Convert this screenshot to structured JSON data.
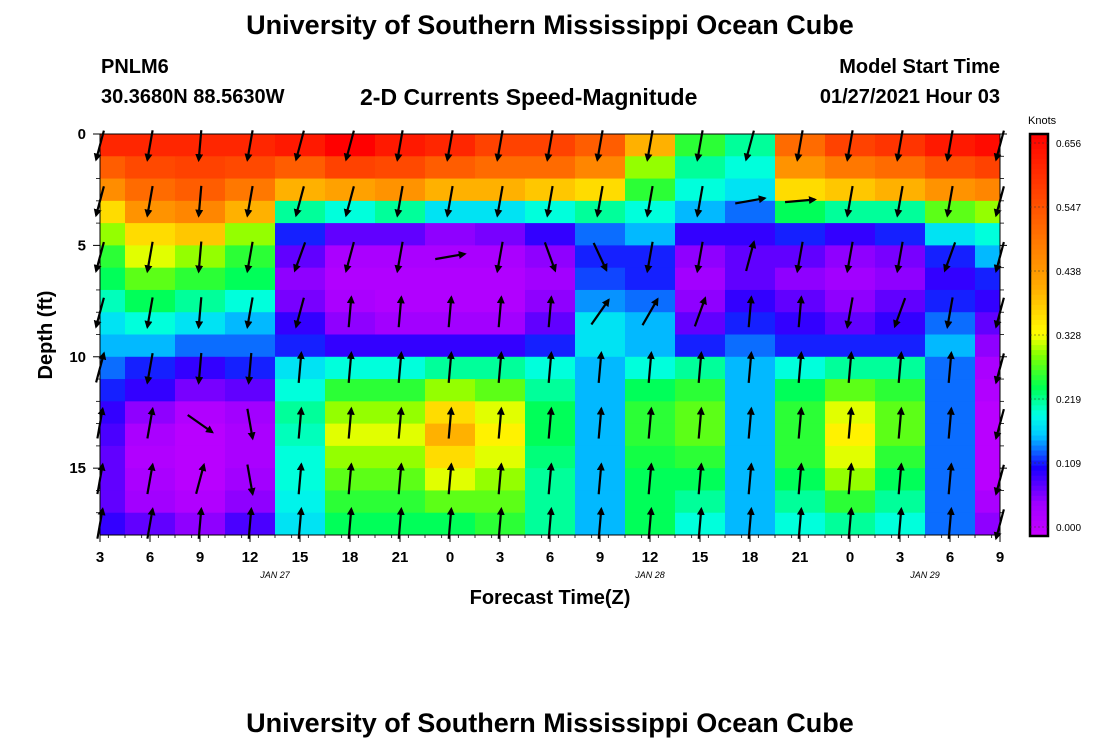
{
  "header": {
    "title": "University of Southern Mississippi Ocean Cube",
    "station_id": "PNLM6",
    "station_coords": "30.3680N 88.5630W",
    "subtitle": "2-D Currents Speed-Magnitude",
    "model_label": "Model Start Time",
    "model_time": "01/27/2021 Hour 03"
  },
  "footer": {
    "title": "University of Southern Mississippi Ocean Cube"
  },
  "chart_data": {
    "type": "heatmap",
    "title": "2-D Currents Speed-Magnitude",
    "xlabel": "Forecast Time(Z)",
    "ylabel": "Depth (ft)",
    "x_tick_labels": [
      "3",
      "6",
      "9",
      "12",
      "15",
      "18",
      "21",
      "0",
      "3",
      "6",
      "9",
      "12",
      "15",
      "18",
      "21",
      "0",
      "3",
      "6",
      "9"
    ],
    "x_date_labels": [
      {
        "label": "JAN 27",
        "at_tick": 3.5
      },
      {
        "label": "JAN 28",
        "at_tick": 11
      },
      {
        "label": "JAN 29",
        "at_tick": 16.5
      }
    ],
    "x_hours_range": [
      3,
      57
    ],
    "y_ticks": [
      0,
      5,
      10,
      15
    ],
    "ylim": [
      0,
      18
    ],
    "y_inverted": true,
    "colorbar": {
      "unit": "Knots",
      "tick_labels": [
        "0.656",
        "0.547",
        "0.438",
        "0.328",
        "0.219",
        "0.109",
        "0.000"
      ],
      "range": [
        0,
        0.656
      ]
    },
    "depth_levels_ft": [
      0.5,
      1.5,
      2.5,
      3.5,
      4.5,
      5.5,
      6.5,
      7.5,
      8.5,
      9.5,
      10.5,
      11.5,
      12.5,
      13.5,
      14.5,
      15.5,
      16.5,
      17.5
    ],
    "time_profiles_hours": [
      3,
      6,
      9,
      12,
      15,
      18,
      21,
      24,
      27,
      30,
      33,
      36,
      39,
      42,
      45,
      48,
      51,
      54,
      57
    ],
    "speed_profiles": [
      [
        0.6,
        0.52,
        0.45,
        0.36,
        0.3,
        0.26,
        0.24,
        0.21,
        0.18,
        0.16,
        0.14,
        0.12,
        0.1,
        0.09,
        0.08,
        0.08,
        0.08,
        0.1
      ],
      [
        0.6,
        0.55,
        0.5,
        0.44,
        0.36,
        0.32,
        0.28,
        0.24,
        0.2,
        0.16,
        0.12,
        0.1,
        0.06,
        0.04,
        0.03,
        0.04,
        0.05,
        0.08
      ],
      [
        0.6,
        0.56,
        0.52,
        0.46,
        0.38,
        0.3,
        0.26,
        0.22,
        0.18,
        0.14,
        0.1,
        0.07,
        0.03,
        0.02,
        0.02,
        0.02,
        0.03,
        0.06
      ],
      [
        0.6,
        0.55,
        0.48,
        0.4,
        0.3,
        0.26,
        0.24,
        0.2,
        0.16,
        0.14,
        0.12,
        0.08,
        0.05,
        0.04,
        0.04,
        0.05,
        0.06,
        0.09
      ],
      [
        0.62,
        0.52,
        0.4,
        0.22,
        0.12,
        0.08,
        0.06,
        0.07,
        0.1,
        0.12,
        0.18,
        0.2,
        0.22,
        0.21,
        0.2,
        0.2,
        0.19,
        0.18
      ],
      [
        0.66,
        0.56,
        0.42,
        0.2,
        0.08,
        0.04,
        0.03,
        0.04,
        0.06,
        0.1,
        0.2,
        0.26,
        0.3,
        0.32,
        0.3,
        0.28,
        0.26,
        0.24
      ],
      [
        0.62,
        0.55,
        0.44,
        0.22,
        0.08,
        0.04,
        0.03,
        0.03,
        0.05,
        0.1,
        0.2,
        0.26,
        0.3,
        0.32,
        0.3,
        0.28,
        0.26,
        0.24
      ],
      [
        0.6,
        0.52,
        0.4,
        0.18,
        0.06,
        0.04,
        0.03,
        0.03,
        0.05,
        0.1,
        0.22,
        0.3,
        0.36,
        0.4,
        0.36,
        0.32,
        0.28,
        0.24
      ],
      [
        0.56,
        0.5,
        0.4,
        0.18,
        0.07,
        0.04,
        0.03,
        0.03,
        0.05,
        0.1,
        0.22,
        0.28,
        0.32,
        0.34,
        0.32,
        0.3,
        0.28,
        0.26
      ],
      [
        0.56,
        0.5,
        0.38,
        0.2,
        0.1,
        0.06,
        0.05,
        0.06,
        0.08,
        0.12,
        0.2,
        0.22,
        0.24,
        0.24,
        0.23,
        0.22,
        0.22,
        0.22
      ],
      [
        0.52,
        0.46,
        0.36,
        0.22,
        0.14,
        0.12,
        0.13,
        0.15,
        0.18,
        0.18,
        0.16,
        0.16,
        0.16,
        0.16,
        0.16,
        0.16,
        0.16,
        0.16
      ],
      [
        0.4,
        0.3,
        0.26,
        0.2,
        0.16,
        0.12,
        0.12,
        0.14,
        0.16,
        0.16,
        0.2,
        0.24,
        0.26,
        0.26,
        0.25,
        0.24,
        0.24,
        0.24
      ],
      [
        0.26,
        0.22,
        0.2,
        0.16,
        0.1,
        0.06,
        0.05,
        0.06,
        0.08,
        0.12,
        0.22,
        0.26,
        0.28,
        0.28,
        0.26,
        0.24,
        0.22,
        0.2
      ],
      [
        0.22,
        0.2,
        0.18,
        0.14,
        0.1,
        0.08,
        0.08,
        0.1,
        0.12,
        0.14,
        0.16,
        0.16,
        0.16,
        0.16,
        0.16,
        0.16,
        0.16,
        0.16
      ],
      [
        0.5,
        0.44,
        0.36,
        0.24,
        0.12,
        0.08,
        0.06,
        0.08,
        0.1,
        0.12,
        0.2,
        0.24,
        0.26,
        0.26,
        0.26,
        0.24,
        0.22,
        0.2
      ],
      [
        0.56,
        0.48,
        0.38,
        0.22,
        0.1,
        0.06,
        0.05,
        0.06,
        0.08,
        0.12,
        0.22,
        0.28,
        0.32,
        0.34,
        0.32,
        0.3,
        0.26,
        0.22
      ],
      [
        0.58,
        0.5,
        0.4,
        0.22,
        0.12,
        0.07,
        0.06,
        0.08,
        0.1,
        0.12,
        0.22,
        0.26,
        0.28,
        0.28,
        0.26,
        0.24,
        0.22,
        0.2
      ],
      [
        0.62,
        0.54,
        0.44,
        0.28,
        0.18,
        0.12,
        0.1,
        0.12,
        0.14,
        0.16,
        0.14,
        0.14,
        0.14,
        0.14,
        0.14,
        0.14,
        0.14,
        0.14
      ],
      [
        0.64,
        0.56,
        0.46,
        0.3,
        0.2,
        0.16,
        0.12,
        0.1,
        0.08,
        0.06,
        0.04,
        0.03,
        0.02,
        0.02,
        0.02,
        0.02,
        0.04,
        0.06
      ]
    ],
    "direction_deg_profiles": [
      [
        195,
        195,
        195,
        195,
        195,
        195,
        195,
        195,
        195,
        195,
        15,
        15,
        10,
        10,
        10,
        10,
        10,
        10
      ],
      [
        190,
        190,
        190,
        190,
        190,
        190,
        190,
        190,
        190,
        190,
        190,
        10,
        10,
        10,
        10,
        10,
        10,
        10
      ],
      [
        185,
        185,
        185,
        185,
        185,
        185,
        185,
        185,
        185,
        185,
        185,
        185,
        175,
        125,
        120,
        15,
        15,
        5
      ],
      [
        190,
        190,
        190,
        190,
        190,
        190,
        190,
        190,
        190,
        190,
        185,
        155,
        165,
        170,
        170,
        170,
        5,
        5
      ],
      [
        195,
        195,
        195,
        195,
        200,
        200,
        200,
        200,
        195,
        5,
        5,
        5,
        5,
        5,
        5,
        5,
        5,
        5
      ],
      [
        195,
        195,
        195,
        195,
        195,
        195,
        200,
        200,
        5,
        5,
        5,
        5,
        5,
        5,
        5,
        5,
        5,
        5
      ],
      [
        190,
        190,
        190,
        190,
        190,
        190,
        170,
        190,
        5,
        5,
        5,
        5,
        5,
        5,
        5,
        5,
        5,
        5
      ],
      [
        190,
        190,
        190,
        190,
        190,
        80,
        10,
        10,
        5,
        5,
        5,
        5,
        5,
        5,
        5,
        5,
        5,
        5
      ],
      [
        190,
        190,
        190,
        190,
        190,
        190,
        130,
        5,
        5,
        5,
        5,
        5,
        5,
        5,
        5,
        5,
        5,
        5
      ],
      [
        190,
        190,
        190,
        190,
        190,
        160,
        185,
        5,
        5,
        5,
        5,
        5,
        5,
        5,
        5,
        5,
        5,
        5
      ],
      [
        190,
        190,
        190,
        190,
        190,
        155,
        150,
        120,
        35,
        5,
        5,
        5,
        5,
        5,
        5,
        5,
        5,
        5
      ],
      [
        190,
        190,
        190,
        190,
        190,
        190,
        190,
        150,
        30,
        5,
        5,
        5,
        5,
        5,
        5,
        5,
        5,
        5
      ],
      [
        190,
        190,
        190,
        190,
        190,
        190,
        115,
        35,
        20,
        5,
        5,
        5,
        5,
        5,
        5,
        5,
        5,
        5
      ],
      [
        195,
        195,
        195,
        80,
        20,
        15,
        10,
        5,
        5,
        5,
        5,
        5,
        5,
        5,
        5,
        5,
        5,
        5
      ],
      [
        190,
        190,
        190,
        85,
        190,
        190,
        190,
        10,
        5,
        5,
        5,
        5,
        5,
        5,
        5,
        5,
        5,
        5
      ],
      [
        190,
        190,
        190,
        190,
        190,
        190,
        190,
        90,
        190,
        5,
        5,
        5,
        5,
        5,
        5,
        5,
        5,
        5
      ],
      [
        190,
        190,
        190,
        190,
        190,
        190,
        190,
        80,
        200,
        195,
        5,
        5,
        5,
        5,
        5,
        5,
        5,
        5
      ],
      [
        190,
        190,
        190,
        190,
        200,
        200,
        140,
        30,
        190,
        190,
        5,
        5,
        5,
        5,
        5,
        5,
        5,
        5
      ],
      [
        195,
        195,
        195,
        195,
        195,
        195,
        195,
        195,
        195,
        195,
        195,
        195,
        195,
        195,
        195,
        195,
        195,
        195
      ]
    ]
  }
}
